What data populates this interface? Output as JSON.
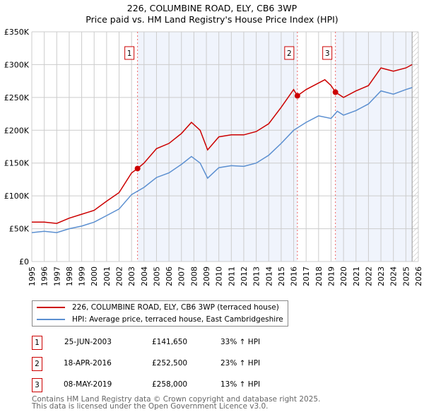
{
  "chart_data": {
    "type": "line",
    "title": "226, COLUMBINE ROAD, ELY, CB6 3WP",
    "subtitle": "Price paid vs. HM Land Registry's House Price Index (HPI)",
    "xlim": [
      1995,
      2026
    ],
    "ylim": [
      0,
      350000
    ],
    "x_ticks": [
      "1995",
      "1996",
      "1997",
      "1998",
      "1999",
      "2000",
      "2001",
      "2002",
      "2003",
      "2004",
      "2005",
      "2006",
      "2007",
      "2008",
      "2009",
      "2010",
      "2011",
      "2012",
      "2013",
      "2014",
      "2015",
      "2016",
      "2017",
      "2018",
      "2019",
      "2020",
      "2021",
      "2022",
      "2023",
      "2024",
      "2025",
      "2026"
    ],
    "y_ticks": [
      {
        "v": 0,
        "label": "£0"
      },
      {
        "v": 50000,
        "label": "£50K"
      },
      {
        "v": 100000,
        "label": "£100K"
      },
      {
        "v": 150000,
        "label": "£150K"
      },
      {
        "v": 200000,
        "label": "£200K"
      },
      {
        "v": 250000,
        "label": "£250K"
      },
      {
        "v": 300000,
        "label": "£300K"
      },
      {
        "v": 350000,
        "label": "£350K"
      }
    ],
    "grid": true,
    "series": [
      {
        "name": "226, COLUMBINE ROAD, ELY, CB6 3WP (terraced house)",
        "color": "#cc0000",
        "x": [
          1995,
          1996,
          1997,
          1998,
          1999,
          2000,
          2001,
          2002,
          2003,
          2003.48,
          2004,
          2005,
          2006,
          2007,
          2007.8,
          2008.5,
          2009.1,
          2010,
          2011,
          2012,
          2013,
          2014,
          2015,
          2016,
          2016.3,
          2017,
          2018,
          2018.5,
          2019,
          2019.35,
          2020,
          2021,
          2022,
          2023,
          2024,
          2025,
          2025.5
        ],
        "y": [
          60000,
          60000,
          58000,
          66000,
          72000,
          78000,
          92000,
          105000,
          135000,
          141650,
          150000,
          172000,
          180000,
          195000,
          212000,
          200000,
          170000,
          190000,
          193000,
          193000,
          198000,
          210000,
          235000,
          262000,
          252500,
          262000,
          272000,
          277000,
          268000,
          258000,
          250000,
          260000,
          268000,
          295000,
          290000,
          295000,
          300000
        ]
      },
      {
        "name": "HPI: Average price, terraced house, East Cambridgeshire",
        "color": "#5b8fd0",
        "x": [
          1995,
          1996,
          1997,
          1998,
          1999,
          2000,
          2001,
          2002,
          2003,
          2004,
          2005,
          2006,
          2007,
          2007.8,
          2008.5,
          2009.1,
          2010,
          2011,
          2012,
          2013,
          2014,
          2015,
          2016,
          2017,
          2018,
          2019,
          2019.5,
          2020,
          2021,
          2022,
          2023,
          2024,
          2025,
          2025.5
        ],
        "y": [
          44000,
          46000,
          44000,
          50000,
          54000,
          60000,
          70000,
          80000,
          102000,
          113000,
          128000,
          135000,
          148000,
          160000,
          150000,
          127000,
          143000,
          146000,
          145000,
          150000,
          162000,
          180000,
          200000,
          212000,
          222000,
          218000,
          229000,
          223000,
          230000,
          240000,
          260000,
          255000,
          262000,
          265000
        ]
      }
    ],
    "sales": [
      {
        "id": "1",
        "x": 2003.48,
        "y": 141650,
        "date": "25-JUN-2003",
        "price": "£141,650",
        "hpi": "33% ↑ HPI"
      },
      {
        "id": "2",
        "x": 2016.3,
        "y": 252500,
        "date": "18-APR-2016",
        "price": "£252,500",
        "hpi": "23% ↑ HPI"
      },
      {
        "id": "3",
        "x": 2019.35,
        "y": 258000,
        "date": "08-MAY-2019",
        "price": "£258,000",
        "hpi": "13% ↑ HPI"
      }
    ],
    "legend_placement": "below"
  },
  "footer": {
    "line1": "Contains HM Land Registry data © Crown copyright and database right 2025.",
    "line2": "This data is licensed under the Open Government Licence v3.0."
  }
}
